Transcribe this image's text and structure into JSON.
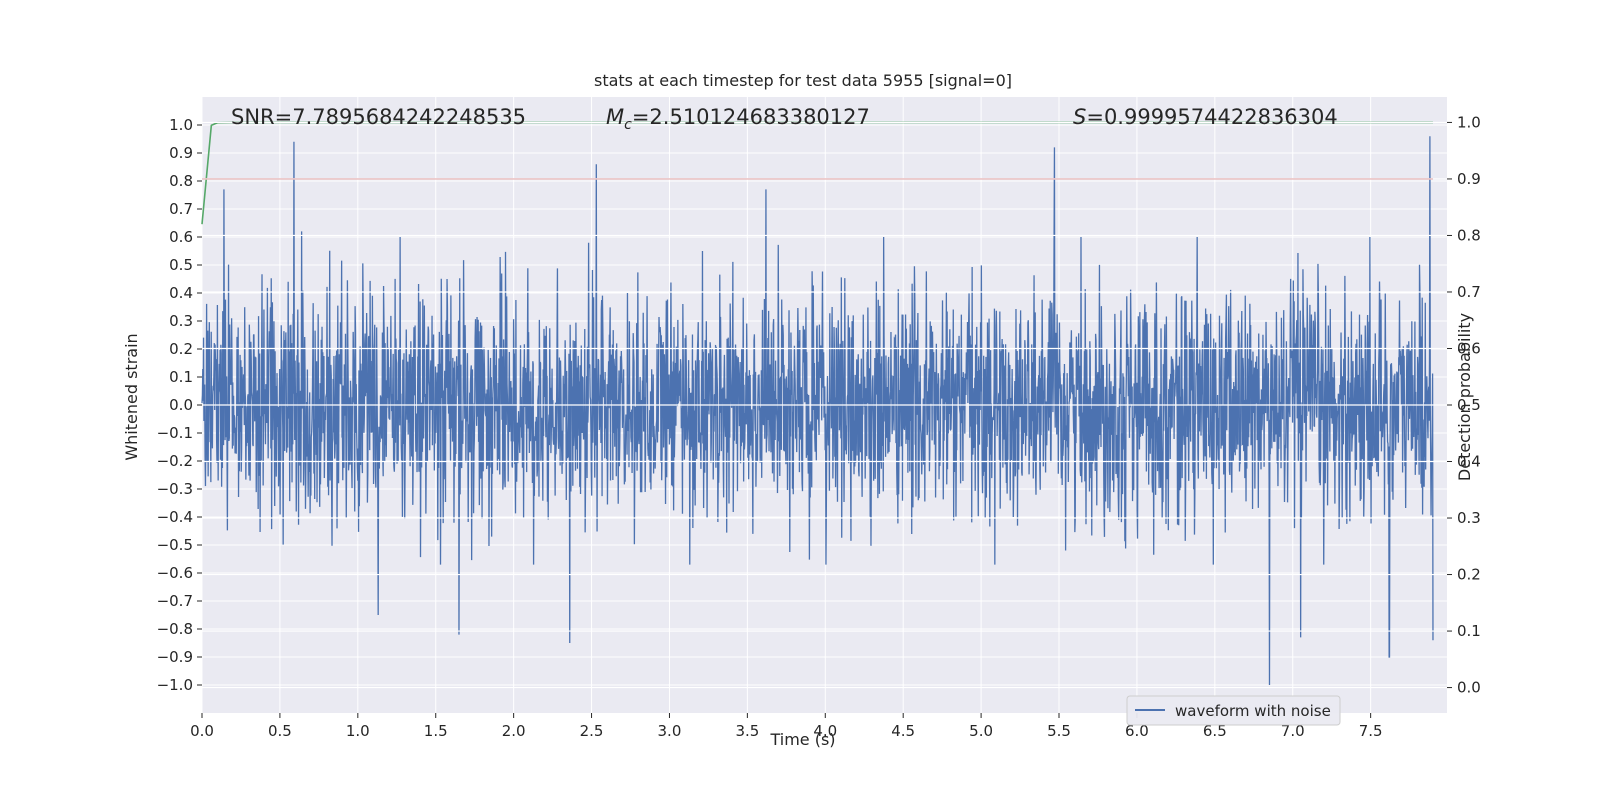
{
  "chart_data": {
    "type": "line",
    "title": "stats at each timestep for test data 5955 [signal=0]",
    "xlabel": "Time (s)",
    "ylabel": "Whitened strain",
    "y2label": "Detection probability",
    "xlim": [
      0.0,
      7.99
    ],
    "ylim": [
      -1.1,
      1.1
    ],
    "y2lim": [
      -0.045,
      1.045
    ],
    "x_ticks": [
      0.0,
      0.5,
      1.0,
      1.5,
      2.0,
      2.5,
      3.0,
      3.5,
      4.0,
      4.5,
      5.0,
      5.5,
      6.0,
      6.5,
      7.0,
      7.5
    ],
    "x_tick_labels": [
      "0.0",
      "0.5",
      "1.0",
      "1.5",
      "2.0",
      "2.5",
      "3.0",
      "3.5",
      "4.0",
      "4.5",
      "5.0",
      "5.5",
      "6.0",
      "6.5",
      "7.0",
      "7.5"
    ],
    "y_ticks": [
      1.0,
      0.9,
      0.8,
      0.7,
      0.6,
      0.5,
      0.4,
      0.3,
      0.2,
      0.1,
      0.0,
      -0.1,
      -0.2,
      -0.3,
      -0.4,
      -0.5,
      -0.6,
      -0.7,
      -0.8,
      -0.9,
      -1.0
    ],
    "y_tick_labels": [
      "1.0",
      "0.9",
      "0.8",
      "0.7",
      "0.6",
      "0.5",
      "0.4",
      "0.3",
      "0.2",
      "0.1",
      "0.0",
      "−0.1",
      "−0.2",
      "−0.3",
      "−0.4",
      "−0.5",
      "−0.6",
      "−0.7",
      "−0.8",
      "−0.9",
      "−1.0"
    ],
    "y2_ticks": [
      0.0,
      0.1,
      0.2,
      0.3,
      0.4,
      0.5,
      0.6,
      0.7,
      0.8,
      0.9,
      1.0
    ],
    "y2_tick_labels": [
      "0.0",
      "0.1",
      "0.2",
      "0.3",
      "0.4",
      "0.5",
      "0.6",
      "0.7",
      "0.8",
      "0.9",
      "1.0"
    ],
    "grid": true,
    "annotations": {
      "snr": "SNR=7.7895684242248535",
      "mc_symbol": "M",
      "mc_sub": "c",
      "mc_value": "=2.510124683380127",
      "s_symbol": "S",
      "s_value": "=0.9999574422836304"
    },
    "legend": {
      "placement": "lower-right",
      "entries": [
        "waveform with noise"
      ]
    },
    "series": [
      {
        "name": "waveform with noise",
        "axis": "left",
        "color": "#4c72b0",
        "kind": "noise",
        "typical_amplitude": [
          -0.42,
          0.45
        ],
        "peaks": [
          {
            "x": 0.14,
            "y": 0.77
          },
          {
            "x": 0.59,
            "y": 0.94
          },
          {
            "x": 0.64,
            "y": 0.62
          },
          {
            "x": 2.53,
            "y": 0.86
          },
          {
            "x": 3.62,
            "y": 0.77
          },
          {
            "x": 5.47,
            "y": 0.92
          },
          {
            "x": 7.88,
            "y": 0.96
          },
          {
            "x": 1.13,
            "y": -0.75
          },
          {
            "x": 1.65,
            "y": -0.82
          },
          {
            "x": 2.36,
            "y": -0.85
          },
          {
            "x": 6.85,
            "y": -1.0
          },
          {
            "x": 7.05,
            "y": -0.83
          },
          {
            "x": 7.62,
            "y": -0.9
          },
          {
            "x": 7.9,
            "y": -0.84
          }
        ]
      },
      {
        "name": "detection probability",
        "axis": "right",
        "color": "#55a868",
        "x": [
          0.0,
          0.06,
          0.1,
          0.2,
          1.0,
          4.0,
          7.9
        ],
        "y": [
          0.82,
          0.995,
          0.9995,
          1.0,
          1.0,
          1.0,
          1.0
        ]
      },
      {
        "name": "threshold",
        "axis": "right",
        "color": "#c44e52",
        "x": [
          0.0,
          7.9
        ],
        "y": [
          0.9,
          0.9
        ]
      }
    ]
  }
}
